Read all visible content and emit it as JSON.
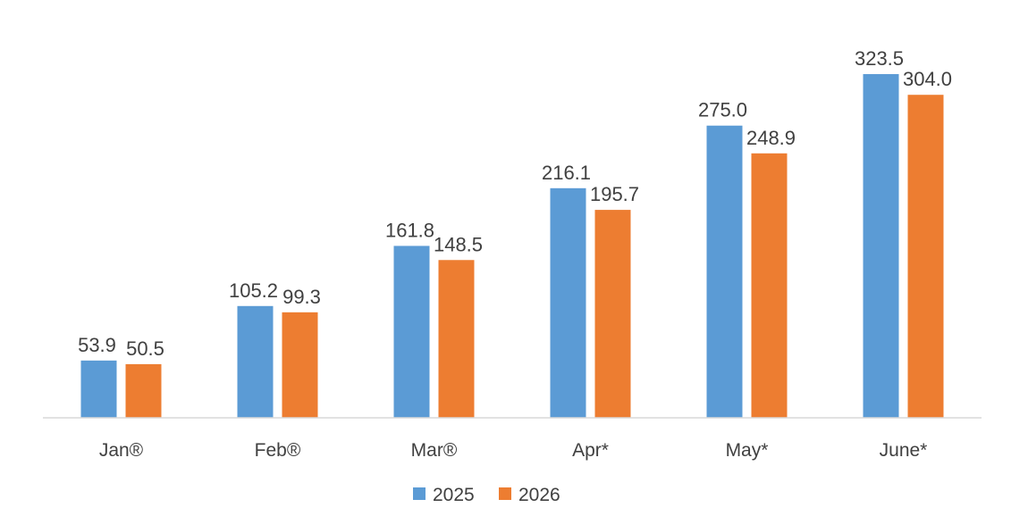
{
  "chart_data": {
    "type": "bar",
    "categories": [
      "Jan®",
      "Feb®",
      "Mar®",
      "Apr*",
      "May*",
      "June*"
    ],
    "series": [
      {
        "name": "2025",
        "values": [
          53.9,
          105.2,
          161.8,
          216.1,
          275.0,
          323.5
        ],
        "labels": [
          "53.9",
          "105.2",
          "161.8",
          "216.1",
          "275.0",
          "323.5"
        ],
        "color": "#5B9BD5"
      },
      {
        "name": "2026",
        "values": [
          50.5,
          99.3,
          148.5,
          195.7,
          248.9,
          304.0
        ],
        "labels": [
          "50.5",
          "99.3",
          "148.5",
          "195.7",
          "248.9",
          "304.0"
        ],
        "color": "#ED7D31"
      }
    ],
    "axis_color": "#D9D9D9",
    "ylim": [
      0,
      330
    ],
    "grid": false,
    "legend_position": "bottom"
  }
}
